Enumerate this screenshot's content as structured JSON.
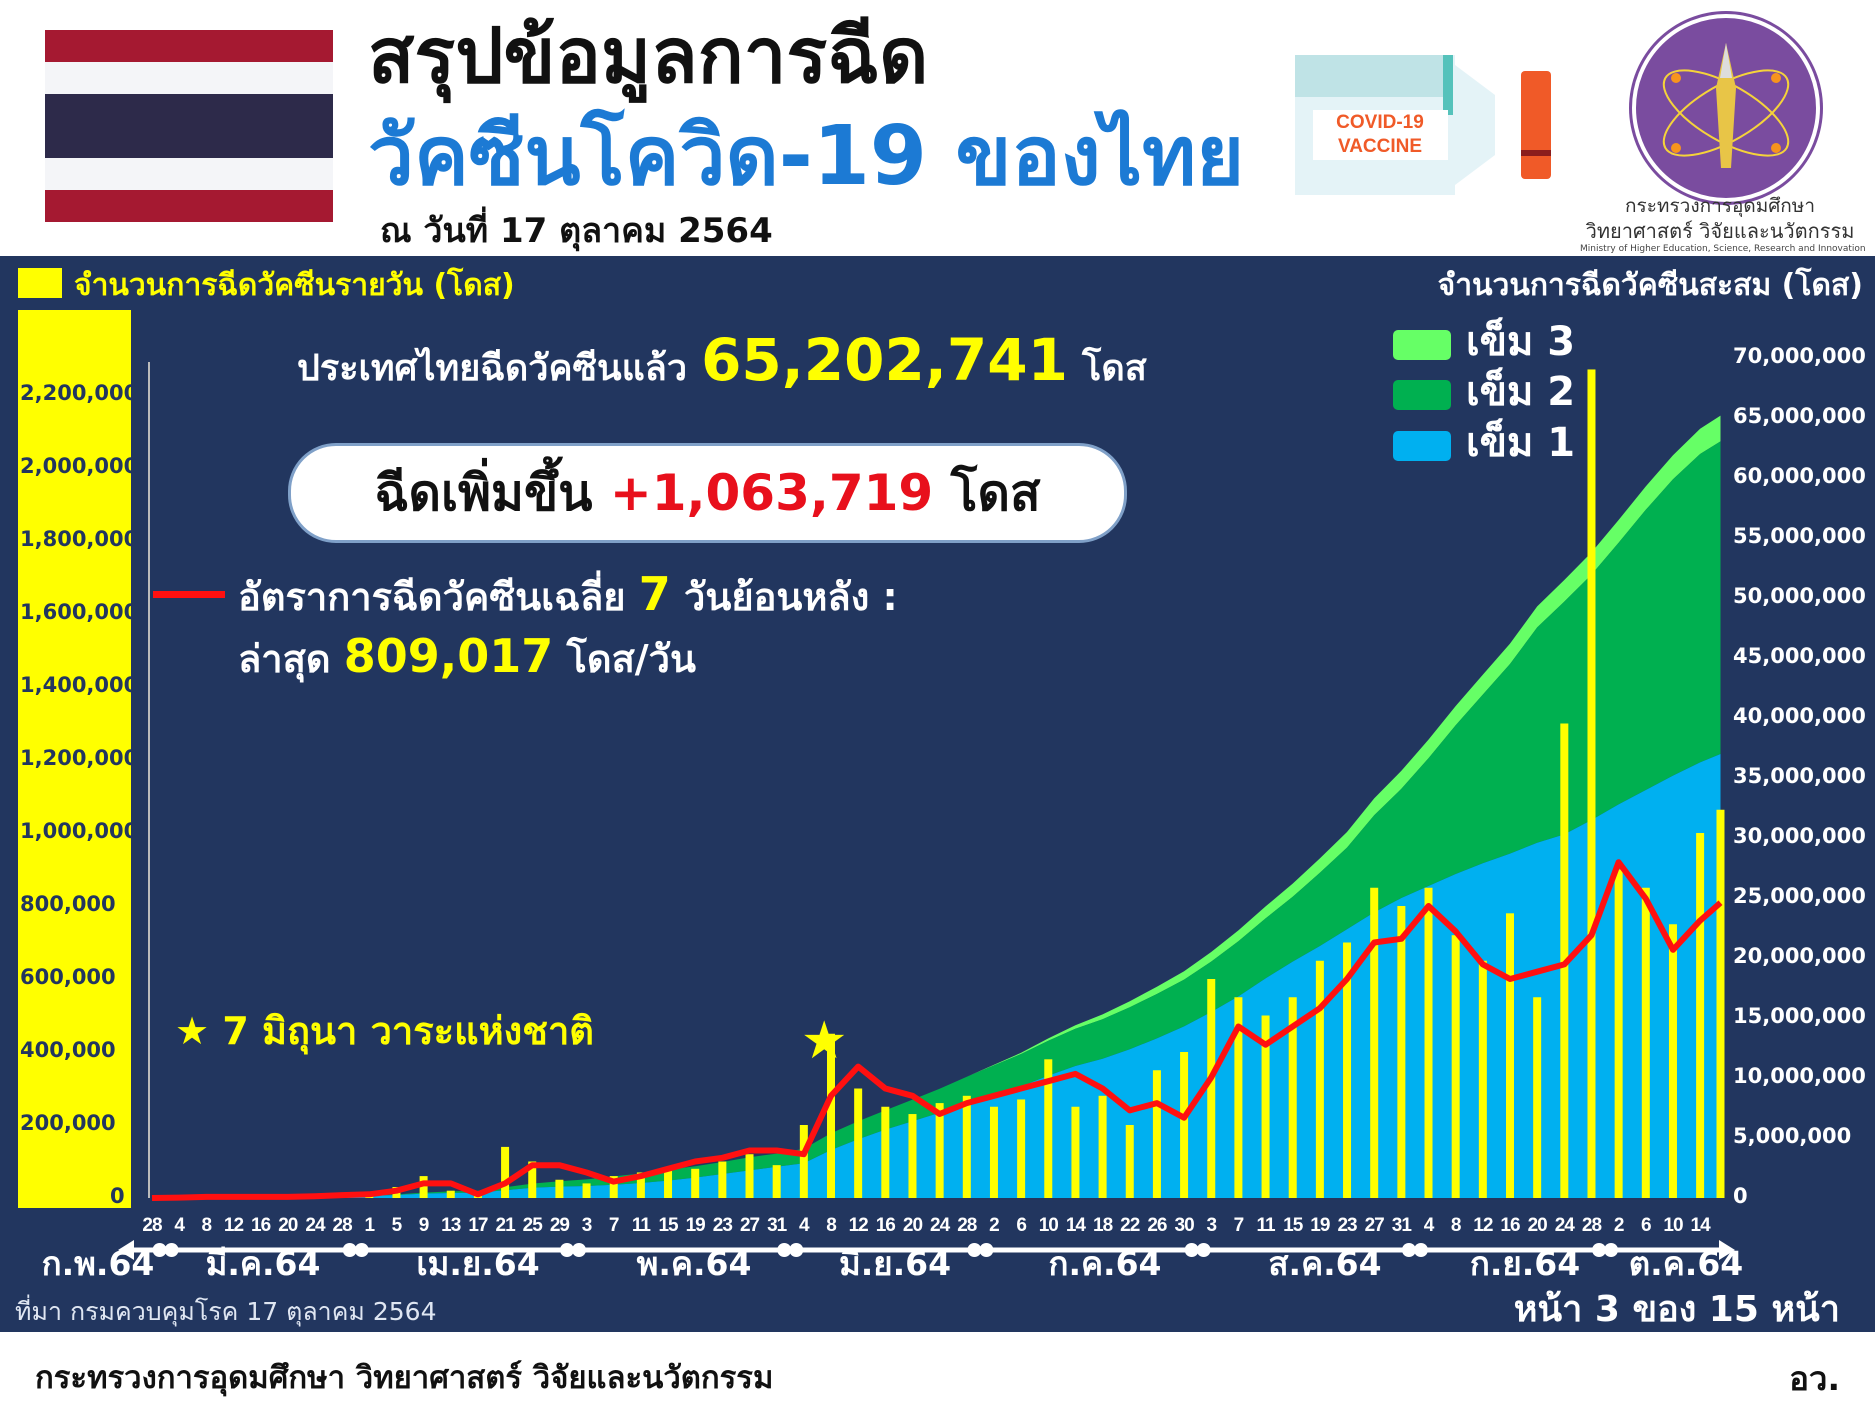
{
  "header": {
    "title_line1": "สรุปข้อมูลการฉีด",
    "title_line2": "วัคซีนโควิด-19 ของไทย",
    "date": "ณ วันที่ 17 ตุลาคม 2564",
    "vaccine_logo_text": "COVID-19 VACCINE",
    "ministry_logo_th_line1": "กระทรวงการอุดมศึกษา",
    "ministry_logo_th_line2": "วิทยาศาสตร์ วิจัยและนวัตกรรม",
    "ministry_logo_en": "Ministry of Higher Education, Science, Research and Innovation"
  },
  "summary": {
    "total_prefix": "ประเทศไทยฉีดวัคซีนแล้ว",
    "total_value": "65,202,741",
    "total_unit": "โดส",
    "increase_prefix": "ฉีดเพิ่มขึ้น",
    "increase_value": "+1,063,719",
    "increase_unit": "โดส",
    "avg_label": "อัตราการฉีดวัคซีนเฉลี่ย",
    "avg_days": "7",
    "avg_suffix": "วันย้อนหลัง :",
    "latest_label": "ล่าสุด",
    "latest_value": "809,017",
    "latest_unit": "โดส/วัน",
    "star_note": "7 มิถุนา วาระแห่งชาติ"
  },
  "footer": {
    "source": "ที่มา กรมควบคุมโรค 17 ตุลาคม 2564",
    "page": "หน้า 3 ของ 15 หน้า",
    "ministry": "กระทรวงการอุดมศึกษา วิทยาศาสตร์ วิจัยและนวัตกรรม",
    "abbr": "อว."
  },
  "colors": {
    "background": "#22365f",
    "daily_bars": "#ffff00",
    "avg_line": "#ff1010",
    "dose1": "#00b0f0",
    "dose2": "#00b050",
    "dose3": "#66ff66",
    "flag_red": "#a51931",
    "flag_blue": "#2d2a4a"
  },
  "chart_data": {
    "type": "bar+area+line",
    "left_axis_title": "จำนวนการฉีดวัคซีนรายวัน (โดส)",
    "right_axis_title": "จำนวนการฉีดวัคซีนสะสม (โดส)",
    "left_ylim": [
      0,
      2200000
    ],
    "right_ylim": [
      0,
      70000000
    ],
    "left_ticks": [
      "0",
      "200,000",
      "400,000",
      "600,000",
      "800,000",
      "1,000,000",
      "1,200,000",
      "1,400,000",
      "1,600,000",
      "1,800,000",
      "2,000,000",
      "2,200,000"
    ],
    "right_ticks": [
      "0",
      "5,000,000",
      "10,000,000",
      "15,000,000",
      "20,000,000",
      "25,000,000",
      "30,000,000",
      "35,000,000",
      "40,000,000",
      "45,000,000",
      "50,000,000",
      "55,000,000",
      "60,000,000",
      "65,000,000",
      "70,000,000"
    ],
    "x_tick_labels": [
      "28",
      "4",
      "8",
      "12",
      "16",
      "20",
      "24",
      "28",
      "1",
      "5",
      "9",
      "13",
      "17",
      "21",
      "25",
      "29",
      "3",
      "7",
      "11",
      "15",
      "19",
      "23",
      "27",
      "31",
      "4",
      "8",
      "12",
      "16",
      "20",
      "24",
      "28",
      "2",
      "6",
      "10",
      "14",
      "18",
      "22",
      "26",
      "30",
      "3",
      "7",
      "11",
      "15",
      "19",
      "23",
      "27",
      "31",
      "4",
      "8",
      "12",
      "16",
      "20",
      "24",
      "28",
      "2",
      "6",
      "10",
      "14"
    ],
    "month_labels": [
      "ก.พ.64",
      "มี.ค.64",
      "เม.ย.64",
      "พ.ค.64",
      "มิ.ย.64",
      "ก.ค.64",
      "ส.ค.64",
      "ก.ย.64",
      "ต.ค.64"
    ],
    "legend": [
      "เข็ม 3",
      "เข็ม 2",
      "เข็ม 1"
    ],
    "dates": [
      "2021-02-28",
      "2021-03-04",
      "2021-03-08",
      "2021-03-12",
      "2021-03-16",
      "2021-03-20",
      "2021-03-24",
      "2021-03-28",
      "2021-04-01",
      "2021-04-05",
      "2021-04-09",
      "2021-04-13",
      "2021-04-17",
      "2021-04-21",
      "2021-04-25",
      "2021-04-29",
      "2021-05-03",
      "2021-05-07",
      "2021-05-11",
      "2021-05-15",
      "2021-05-19",
      "2021-05-23",
      "2021-05-27",
      "2021-05-31",
      "2021-06-04",
      "2021-06-08",
      "2021-06-12",
      "2021-06-16",
      "2021-06-20",
      "2021-06-24",
      "2021-06-28",
      "2021-07-02",
      "2021-07-06",
      "2021-07-10",
      "2021-07-14",
      "2021-07-18",
      "2021-07-22",
      "2021-07-26",
      "2021-07-30",
      "2021-08-03",
      "2021-08-07",
      "2021-08-11",
      "2021-08-15",
      "2021-08-19",
      "2021-08-23",
      "2021-08-27",
      "2021-08-31",
      "2021-09-04",
      "2021-09-08",
      "2021-09-12",
      "2021-09-16",
      "2021-09-20",
      "2021-09-24",
      "2021-09-28",
      "2021-10-02",
      "2021-10-06",
      "2021-10-10",
      "2021-10-14",
      "2021-10-17"
    ],
    "daily_doses": [
      0,
      2000,
      5000,
      5000,
      3000,
      3000,
      10000,
      10000,
      15000,
      30000,
      60000,
      20000,
      10000,
      140000,
      100000,
      50000,
      40000,
      60000,
      70000,
      80000,
      80000,
      100000,
      120000,
      90000,
      200000,
      450000,
      300000,
      250000,
      230000,
      260000,
      280000,
      250000,
      270000,
      380000,
      250000,
      280000,
      200000,
      350000,
      400000,
      600000,
      550000,
      500000,
      550000,
      650000,
      700000,
      850000,
      800000,
      850000,
      720000,
      650000,
      780000,
      550000,
      1300000,
      2270000,
      900000,
      850000,
      750000,
      1000000,
      1063719
    ],
    "avg_7day": [
      0,
      1000,
      3000,
      3000,
      3000,
      3000,
      5000,
      8000,
      10000,
      20000,
      40000,
      40000,
      10000,
      40000,
      90000,
      90000,
      70000,
      45000,
      60000,
      80000,
      100000,
      110000,
      130000,
      130000,
      120000,
      280000,
      360000,
      300000,
      280000,
      230000,
      260000,
      280000,
      300000,
      320000,
      340000,
      300000,
      240000,
      260000,
      220000,
      330000,
      470000,
      420000,
      470000,
      520000,
      600000,
      700000,
      710000,
      800000,
      730000,
      640000,
      600000,
      620000,
      640000,
      720000,
      920000,
      820000,
      680000,
      760000,
      809017
    ],
    "series": [
      {
        "name": "เข็ม 1",
        "cumulative": [
          0,
          30000,
          50000,
          70000,
          80000,
          100000,
          120000,
          150000,
          180000,
          250000,
          370000,
          420000,
          450000,
          650000,
          850000,
          950000,
          1000000,
          1100000,
          1250000,
          1450000,
          1700000,
          2000000,
          2300000,
          2600000,
          2900000,
          4000000,
          4900000,
          5700000,
          6400000,
          7100000,
          7900000,
          8600000,
          9300000,
          10200000,
          11000000,
          11600000,
          12400000,
          13300000,
          14300000,
          15500000,
          16800000,
          18300000,
          19700000,
          21000000,
          22400000,
          23800000,
          25000000,
          26000000,
          27000000,
          27900000,
          28700000,
          29600000,
          30300000,
          31500000,
          32800000,
          34000000,
          35200000,
          36300000,
          37000000
        ]
      },
      {
        "name": "เข็ม 2",
        "cumulative": [
          0,
          0,
          0,
          0,
          0,
          0,
          10000,
          20000,
          40000,
          50000,
          80000,
          130000,
          150000,
          250000,
          350000,
          450000,
          550000,
          700000,
          800000,
          900000,
          950000,
          1000000,
          1100000,
          1100000,
          1200000,
          1400000,
          1500000,
          1600000,
          1800000,
          2000000,
          2200000,
          2450000,
          2700000,
          2900000,
          3100000,
          3300000,
          3500000,
          3700000,
          3900000,
          4200000,
          4600000,
          5000000,
          5400000,
          6100000,
          6800000,
          8100000,
          9100000,
          10650000,
          12400000,
          14050000,
          15800000,
          17950000,
          19400000,
          20450000,
          21800000,
          23350000,
          24700000,
          25700000,
          26050000
        ]
      },
      {
        "name": "เข็ม 3",
        "cumulative": [
          0,
          0,
          0,
          0,
          0,
          0,
          0,
          0,
          0,
          0,
          0,
          0,
          0,
          0,
          0,
          0,
          0,
          0,
          0,
          0,
          0,
          0,
          0,
          0,
          0,
          0,
          0,
          0,
          0,
          0,
          0,
          50000,
          100000,
          200000,
          300000,
          400000,
          500000,
          600000,
          700000,
          800000,
          900000,
          1000000,
          1100000,
          1200000,
          1300000,
          1400000,
          1500000,
          1550000,
          1600000,
          1650000,
          1700000,
          1750000,
          1800000,
          1850000,
          1900000,
          1950000,
          2000000,
          2100000,
          2150000
        ]
      }
    ],
    "annotation": {
      "date": "2021-06-07",
      "marker": "star"
    }
  }
}
